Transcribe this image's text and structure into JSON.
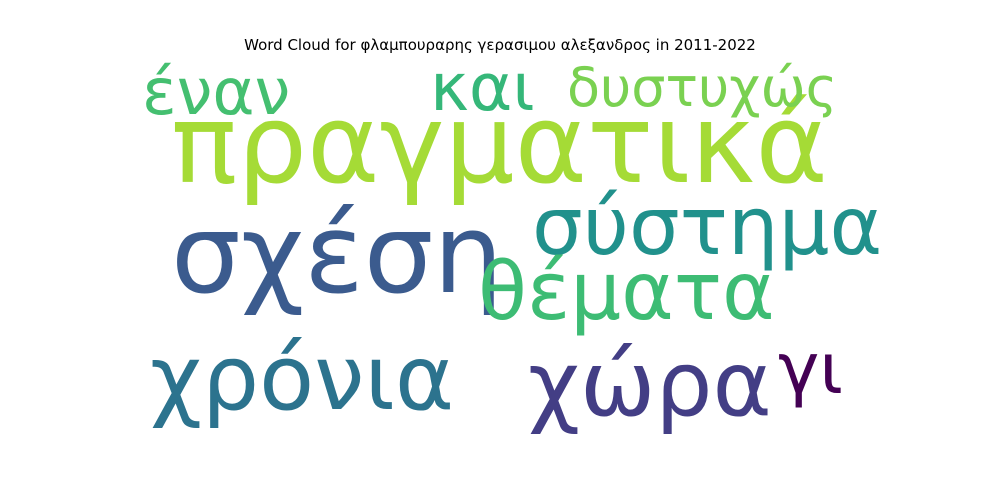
{
  "title": "Word Cloud for φλαμπουραρης γερασιμου αλεξανδρος in 2011-2022",
  "words": [
    {
      "text": "πραγματικά",
      "color": "#a5db36"
    },
    {
      "text": "σχέση",
      "color": "#3b5b8e"
    },
    {
      "text": "σύστημα",
      "color": "#21918c"
    },
    {
      "text": "θέματα",
      "color": "#3dbc74"
    },
    {
      "text": "χρόνια",
      "color": "#2c738e"
    },
    {
      "text": "χώρα",
      "color": "#433e85"
    },
    {
      "text": "έναν",
      "color": "#44bf70"
    },
    {
      "text": "και",
      "color": "#35b779"
    },
    {
      "text": "δυστυχώς",
      "color": "#7ad151"
    },
    {
      "text": "γι",
      "color": "#440154"
    }
  ]
}
